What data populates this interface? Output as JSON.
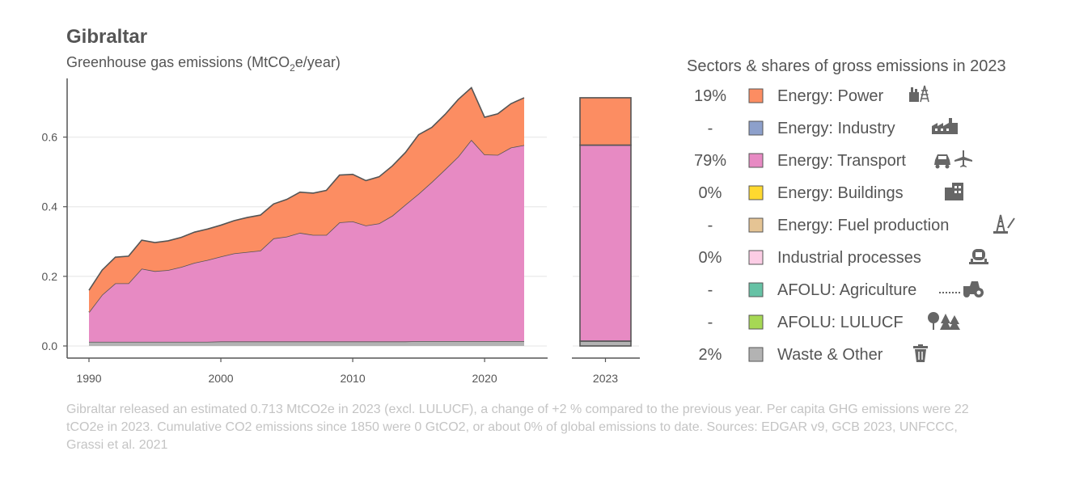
{
  "title": "Gibraltar",
  "subtitle_prefix": "Greenhouse gas emissions (MtCO",
  "subtitle_sub": "2",
  "subtitle_suffix": "e/year)",
  "legend_title": "Sectors & shares of gross emissions in 2023",
  "footnote": "Gibraltar released an estimated 0.713 MtCO2e in 2023 (excl. LULUCF), a change of +2 % compared to the previous year. Per capita GHG emissions were 22 tCO2e in 2023. Cumulative CO2 emissions since 1850 were 0 GtCO2, or about 0% of global emissions to date. Sources: EDGAR v9, GCB 2023, UNFCCC, Grassi et al. 2021",
  "chart_data": {
    "type": "area",
    "stacked": true,
    "x": [
      1990,
      1991,
      1992,
      1993,
      1994,
      1995,
      1996,
      1997,
      1998,
      1999,
      2000,
      2001,
      2002,
      2003,
      2004,
      2005,
      2006,
      2007,
      2008,
      2009,
      2010,
      2011,
      2012,
      2013,
      2014,
      2015,
      2016,
      2017,
      2018,
      2019,
      2020,
      2021,
      2022,
      2023
    ],
    "ylim": [
      0,
      0.75
    ],
    "yticks": [
      "0.0",
      "0.2",
      "0.4",
      "0.6"
    ],
    "ytick_values": [
      0,
      0.2,
      0.4,
      0.6
    ],
    "xticks": [
      "1990",
      "2000",
      "2010",
      "2020"
    ],
    "xtick_values": [
      1990,
      2000,
      2010,
      2020
    ],
    "grid": "horizontal",
    "legend_position": "right",
    "series": [
      {
        "name": "Waste & Other",
        "color": "#b3b3b3",
        "values": [
          0.012,
          0.012,
          0.012,
          0.012,
          0.012,
          0.012,
          0.012,
          0.012,
          0.012,
          0.012,
          0.013,
          0.013,
          0.013,
          0.013,
          0.013,
          0.013,
          0.013,
          0.013,
          0.013,
          0.013,
          0.013,
          0.013,
          0.013,
          0.013,
          0.013,
          0.014,
          0.014,
          0.014,
          0.014,
          0.014,
          0.014,
          0.014,
          0.014,
          0.014
        ]
      },
      {
        "name": "Energy: Transport",
        "color": "#e78ac3",
        "values": [
          0.085,
          0.135,
          0.168,
          0.168,
          0.21,
          0.203,
          0.206,
          0.215,
          0.227,
          0.235,
          0.244,
          0.253,
          0.257,
          0.261,
          0.296,
          0.301,
          0.312,
          0.306,
          0.306,
          0.342,
          0.345,
          0.333,
          0.339,
          0.361,
          0.393,
          0.423,
          0.457,
          0.493,
          0.53,
          0.578,
          0.536,
          0.535,
          0.556,
          0.563
        ]
      },
      {
        "name": "Energy: Power",
        "color": "#fc8d62",
        "values": [
          0.063,
          0.071,
          0.075,
          0.078,
          0.082,
          0.082,
          0.084,
          0.085,
          0.088,
          0.089,
          0.09,
          0.094,
          0.099,
          0.102,
          0.099,
          0.107,
          0.117,
          0.12,
          0.128,
          0.136,
          0.135,
          0.129,
          0.134,
          0.143,
          0.15,
          0.17,
          0.157,
          0.158,
          0.164,
          0.15,
          0.107,
          0.118,
          0.126,
          0.136
        ]
      }
    ],
    "bar_2023": {
      "label": "2023",
      "segments": [
        {
          "name": "Waste & Other",
          "value": 0.014,
          "color": "#b3b3b3"
        },
        {
          "name": "Energy: Transport",
          "value": 0.563,
          "color": "#e78ac3"
        },
        {
          "name": "Energy: Power",
          "value": 0.136,
          "color": "#fc8d62"
        }
      ]
    }
  },
  "legend": [
    {
      "share": "19%",
      "label": "Energy: Power",
      "color": "#fc8d62",
      "icon": "power-plant-icon"
    },
    {
      "share": "-",
      "label": "Energy: Industry",
      "color": "#8da0cb",
      "icon": "factory-icon"
    },
    {
      "share": "79%",
      "label": "Energy: Transport",
      "color": "#e78ac3",
      "icon": "car-plane-icon"
    },
    {
      "share": "0%",
      "label": "Energy: Buildings",
      "color": "#ffd92f",
      "icon": "buildings-icon"
    },
    {
      "share": "-",
      "label": "Energy: Fuel production",
      "color": "#e5c494",
      "icon": "oil-rig-icon"
    },
    {
      "share": "0%",
      "label": "Industrial processes",
      "color": "#fccde5",
      "icon": "cement-mixer-icon"
    },
    {
      "share": "-",
      "label": "AFOLU: Agriculture",
      "color": "#66c2a5",
      "icon": "tractor-icon"
    },
    {
      "share": "-",
      "label": "AFOLU: LULUCF",
      "color": "#a6d854",
      "icon": "trees-icon"
    },
    {
      "share": "2%",
      "label": "Waste & Other",
      "color": "#b3b3b3",
      "icon": "trash-icon"
    }
  ]
}
